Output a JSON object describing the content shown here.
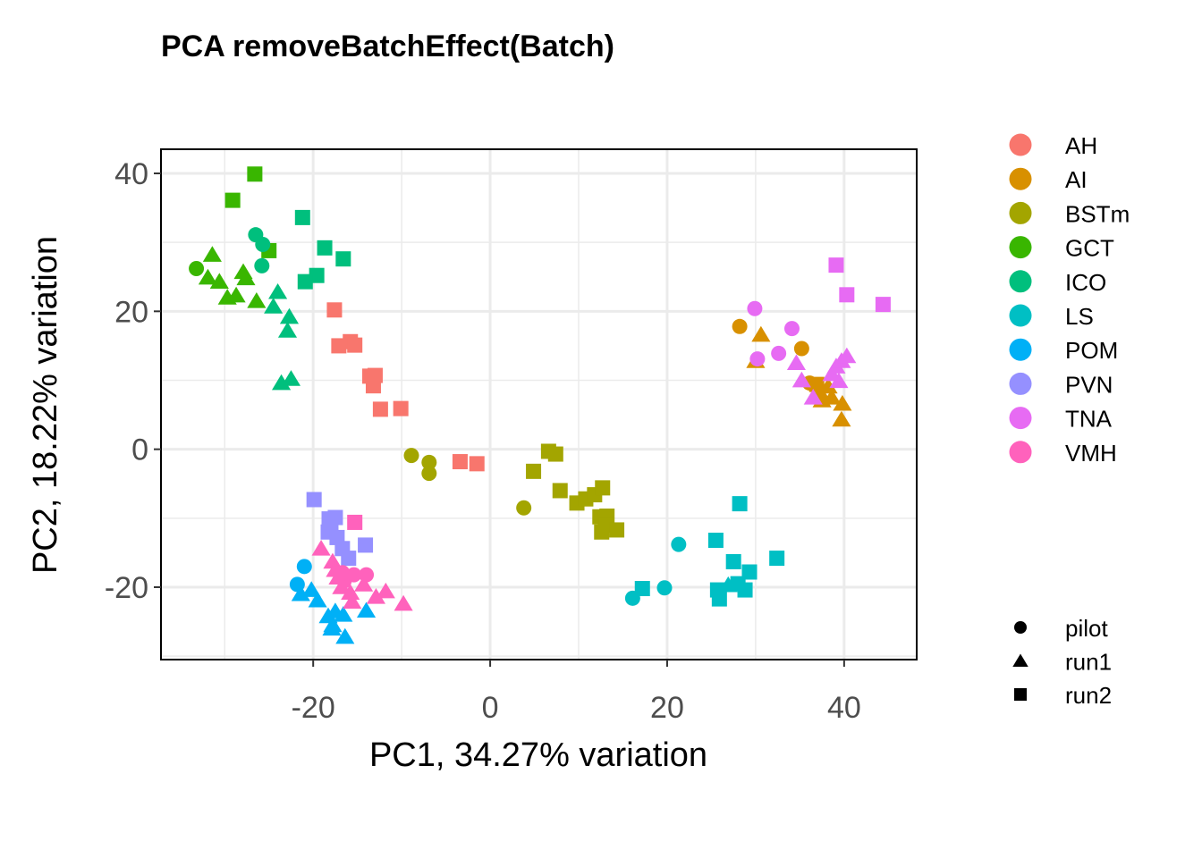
{
  "chart_data": {
    "type": "scatter",
    "title": "PCA removeBatchEffect(Batch)",
    "xlabel": "PC1, 34.27% variation",
    "ylabel": "PC2, 18.22% variation",
    "xlim": [
      -37.2,
      48.2
    ],
    "ylim": [
      -30.5,
      43.5
    ],
    "x_ticks": [
      -20,
      0,
      20,
      40
    ],
    "y_ticks": [
      -20,
      0,
      20,
      40
    ],
    "grid": true,
    "legend_position": "right",
    "groups": [
      {
        "name": "AH",
        "color": "#F8766D"
      },
      {
        "name": "AI",
        "color": "#D89000"
      },
      {
        "name": "BSTm",
        "color": "#A3A500"
      },
      {
        "name": "GCT",
        "color": "#39B600"
      },
      {
        "name": "ICO",
        "color": "#00BF7D"
      },
      {
        "name": "LS",
        "color": "#00BFC4"
      },
      {
        "name": "POM",
        "color": "#00B0F6"
      },
      {
        "name": "PVN",
        "color": "#9590FF"
      },
      {
        "name": "TNA",
        "color": "#E76BF3"
      },
      {
        "name": "VMH",
        "color": "#FF62BC"
      }
    ],
    "shapes": [
      {
        "name": "pilot",
        "shape": "circle"
      },
      {
        "name": "run1",
        "shape": "triangle"
      },
      {
        "name": "run2",
        "shape": "square"
      }
    ],
    "points": [
      {
        "x": -17.6,
        "y": 20.2,
        "g": "AH",
        "b": "run2"
      },
      {
        "x": -17.1,
        "y": 15.0,
        "g": "AH",
        "b": "run2"
      },
      {
        "x": -15.8,
        "y": 15.6,
        "g": "AH",
        "b": "run2"
      },
      {
        "x": -15.3,
        "y": 15.1,
        "g": "AH",
        "b": "run2"
      },
      {
        "x": -13.6,
        "y": 10.6,
        "g": "AH",
        "b": "run2"
      },
      {
        "x": -13.0,
        "y": 10.7,
        "g": "AH",
        "b": "run2"
      },
      {
        "x": -13.2,
        "y": 9.2,
        "g": "AH",
        "b": "run2"
      },
      {
        "x": -12.4,
        "y": 5.8,
        "g": "AH",
        "b": "run2"
      },
      {
        "x": -10.1,
        "y": 5.9,
        "g": "AH",
        "b": "run2"
      },
      {
        "x": -3.4,
        "y": -1.8,
        "g": "AH",
        "b": "run2"
      },
      {
        "x": -1.5,
        "y": -2.1,
        "g": "AH",
        "b": "run2"
      },
      {
        "x": 28.2,
        "y": 17.8,
        "g": "AI",
        "b": "pilot"
      },
      {
        "x": 35.2,
        "y": 14.6,
        "g": "AI",
        "b": "pilot"
      },
      {
        "x": 36.1,
        "y": 9.6,
        "g": "AI",
        "b": "pilot"
      },
      {
        "x": 30.6,
        "y": 16.6,
        "g": "AI",
        "b": "run1"
      },
      {
        "x": 30.0,
        "y": 12.8,
        "g": "AI",
        "b": "run1"
      },
      {
        "x": 37.3,
        "y": 8.2,
        "g": "AI",
        "b": "run1"
      },
      {
        "x": 38.2,
        "y": 9.1,
        "g": "AI",
        "b": "run1"
      },
      {
        "x": 37.5,
        "y": 7.1,
        "g": "AI",
        "b": "run1"
      },
      {
        "x": 38.6,
        "y": 7.5,
        "g": "AI",
        "b": "run1"
      },
      {
        "x": 39.8,
        "y": 6.6,
        "g": "AI",
        "b": "run1"
      },
      {
        "x": 39.7,
        "y": 4.3,
        "g": "AI",
        "b": "run1"
      },
      {
        "x": 36.9,
        "y": 9.4,
        "g": "AI",
        "b": "run2"
      },
      {
        "x": -8.9,
        "y": -0.9,
        "g": "BSTm",
        "b": "pilot"
      },
      {
        "x": -6.9,
        "y": -1.9,
        "g": "BSTm",
        "b": "pilot"
      },
      {
        "x": -6.9,
        "y": -3.5,
        "g": "BSTm",
        "b": "pilot"
      },
      {
        "x": 3.8,
        "y": -8.5,
        "g": "BSTm",
        "b": "pilot"
      },
      {
        "x": 6.6,
        "y": -0.3,
        "g": "BSTm",
        "b": "run2"
      },
      {
        "x": 7.4,
        "y": -0.7,
        "g": "BSTm",
        "b": "run2"
      },
      {
        "x": 4.9,
        "y": -3.2,
        "g": "BSTm",
        "b": "run2"
      },
      {
        "x": 7.9,
        "y": -6.0,
        "g": "BSTm",
        "b": "run2"
      },
      {
        "x": 9.8,
        "y": -7.8,
        "g": "BSTm",
        "b": "run2"
      },
      {
        "x": 10.8,
        "y": -7.2,
        "g": "BSTm",
        "b": "run2"
      },
      {
        "x": 11.8,
        "y": -6.6,
        "g": "BSTm",
        "b": "run2"
      },
      {
        "x": 12.7,
        "y": -5.6,
        "g": "BSTm",
        "b": "run2"
      },
      {
        "x": 12.4,
        "y": -9.8,
        "g": "BSTm",
        "b": "run2"
      },
      {
        "x": 13.0,
        "y": -10.0,
        "g": "BSTm",
        "b": "run2"
      },
      {
        "x": 13.2,
        "y": -9.7,
        "g": "BSTm",
        "b": "run2"
      },
      {
        "x": 13.1,
        "y": -11.0,
        "g": "BSTm",
        "b": "run2"
      },
      {
        "x": 12.6,
        "y": -12.0,
        "g": "BSTm",
        "b": "run2"
      },
      {
        "x": 14.3,
        "y": -11.7,
        "g": "BSTm",
        "b": "run2"
      },
      {
        "x": -33.2,
        "y": 26.2,
        "g": "GCT",
        "b": "pilot"
      },
      {
        "x": -31.4,
        "y": 28.2,
        "g": "GCT",
        "b": "run1"
      },
      {
        "x": -31.9,
        "y": 24.9,
        "g": "GCT",
        "b": "run1"
      },
      {
        "x": -30.6,
        "y": 24.3,
        "g": "GCT",
        "b": "run1"
      },
      {
        "x": -29.7,
        "y": 22.0,
        "g": "GCT",
        "b": "run1"
      },
      {
        "x": -28.7,
        "y": 22.3,
        "g": "GCT",
        "b": "run1"
      },
      {
        "x": -27.9,
        "y": 25.7,
        "g": "GCT",
        "b": "run1"
      },
      {
        "x": -27.6,
        "y": 24.8,
        "g": "GCT",
        "b": "run1"
      },
      {
        "x": -26.4,
        "y": 21.5,
        "g": "GCT",
        "b": "run1"
      },
      {
        "x": -29.1,
        "y": 36.1,
        "g": "GCT",
        "b": "run2"
      },
      {
        "x": -26.6,
        "y": 39.9,
        "g": "GCT",
        "b": "run2"
      },
      {
        "x": -25.0,
        "y": 28.8,
        "g": "GCT",
        "b": "run2"
      },
      {
        "x": -26.5,
        "y": 31.1,
        "g": "ICO",
        "b": "pilot"
      },
      {
        "x": -25.7,
        "y": 29.7,
        "g": "ICO",
        "b": "pilot"
      },
      {
        "x": -25.8,
        "y": 26.6,
        "g": "ICO",
        "b": "pilot"
      },
      {
        "x": -24.0,
        "y": 22.8,
        "g": "ICO",
        "b": "run1"
      },
      {
        "x": -24.5,
        "y": 20.7,
        "g": "ICO",
        "b": "run1"
      },
      {
        "x": -22.7,
        "y": 19.2,
        "g": "ICO",
        "b": "run1"
      },
      {
        "x": -22.9,
        "y": 17.2,
        "g": "ICO",
        "b": "run1"
      },
      {
        "x": -23.6,
        "y": 9.6,
        "g": "ICO",
        "b": "run1"
      },
      {
        "x": -22.5,
        "y": 10.2,
        "g": "ICO",
        "b": "run1"
      },
      {
        "x": -21.2,
        "y": 33.6,
        "g": "ICO",
        "b": "run2"
      },
      {
        "x": -18.7,
        "y": 29.2,
        "g": "ICO",
        "b": "run2"
      },
      {
        "x": -16.6,
        "y": 27.6,
        "g": "ICO",
        "b": "run2"
      },
      {
        "x": -19.6,
        "y": 25.2,
        "g": "ICO",
        "b": "run2"
      },
      {
        "x": -20.9,
        "y": 24.3,
        "g": "ICO",
        "b": "run2"
      },
      {
        "x": 16.1,
        "y": -21.6,
        "g": "LS",
        "b": "pilot"
      },
      {
        "x": 19.7,
        "y": -20.1,
        "g": "LS",
        "b": "pilot"
      },
      {
        "x": 21.3,
        "y": -13.8,
        "g": "LS",
        "b": "pilot"
      },
      {
        "x": 26.9,
        "y": -19.7,
        "g": "LS",
        "b": "run1"
      },
      {
        "x": 17.2,
        "y": -20.2,
        "g": "LS",
        "b": "run2"
      },
      {
        "x": 25.5,
        "y": -13.2,
        "g": "LS",
        "b": "run2"
      },
      {
        "x": 28.2,
        "y": -7.9,
        "g": "LS",
        "b": "run2"
      },
      {
        "x": 27.5,
        "y": -16.3,
        "g": "LS",
        "b": "run2"
      },
      {
        "x": 29.3,
        "y": -17.8,
        "g": "LS",
        "b": "run2"
      },
      {
        "x": 32.4,
        "y": -15.8,
        "g": "LS",
        "b": "run2"
      },
      {
        "x": 25.7,
        "y": -20.4,
        "g": "LS",
        "b": "run2"
      },
      {
        "x": 25.9,
        "y": -21.7,
        "g": "LS",
        "b": "run2"
      },
      {
        "x": 28.0,
        "y": -19.5,
        "g": "LS",
        "b": "run2"
      },
      {
        "x": 28.8,
        "y": -20.4,
        "g": "LS",
        "b": "run2"
      },
      {
        "x": -21.0,
        "y": -17.0,
        "g": "POM",
        "b": "pilot"
      },
      {
        "x": -21.8,
        "y": -19.6,
        "g": "POM",
        "b": "pilot"
      },
      {
        "x": -21.4,
        "y": -21.0,
        "g": "POM",
        "b": "run1"
      },
      {
        "x": -20.2,
        "y": -20.4,
        "g": "POM",
        "b": "run1"
      },
      {
        "x": -19.5,
        "y": -21.9,
        "g": "POM",
        "b": "run1"
      },
      {
        "x": -18.3,
        "y": -24.2,
        "g": "POM",
        "b": "run1"
      },
      {
        "x": -17.8,
        "y": -25.5,
        "g": "POM",
        "b": "run1"
      },
      {
        "x": -17.5,
        "y": -23.5,
        "g": "POM",
        "b": "run1"
      },
      {
        "x": -16.6,
        "y": -24.0,
        "g": "POM",
        "b": "run1"
      },
      {
        "x": -16.4,
        "y": -27.2,
        "g": "POM",
        "b": "run1"
      },
      {
        "x": -17.9,
        "y": -26.0,
        "g": "POM",
        "b": "run1"
      },
      {
        "x": -14.0,
        "y": -23.4,
        "g": "POM",
        "b": "run1"
      },
      {
        "x": -19.9,
        "y": -7.3,
        "g": "PVN",
        "b": "run2"
      },
      {
        "x": -18.2,
        "y": -10.1,
        "g": "PVN",
        "b": "run2"
      },
      {
        "x": -17.5,
        "y": -9.9,
        "g": "PVN",
        "b": "run2"
      },
      {
        "x": -18.0,
        "y": -11.4,
        "g": "PVN",
        "b": "run2"
      },
      {
        "x": -18.3,
        "y": -12.0,
        "g": "PVN",
        "b": "run2"
      },
      {
        "x": -17.3,
        "y": -12.8,
        "g": "PVN",
        "b": "run2"
      },
      {
        "x": -16.7,
        "y": -14.4,
        "g": "PVN",
        "b": "run2"
      },
      {
        "x": -16.0,
        "y": -15.8,
        "g": "PVN",
        "b": "run2"
      },
      {
        "x": -14.1,
        "y": -13.9,
        "g": "PVN",
        "b": "run2"
      },
      {
        "x": 29.9,
        "y": 20.4,
        "g": "TNA",
        "b": "pilot"
      },
      {
        "x": 30.2,
        "y": 13.1,
        "g": "TNA",
        "b": "pilot"
      },
      {
        "x": 32.6,
        "y": 13.9,
        "g": "TNA",
        "b": "pilot"
      },
      {
        "x": 34.1,
        "y": 17.5,
        "g": "TNA",
        "b": "pilot"
      },
      {
        "x": 34.6,
        "y": 12.5,
        "g": "TNA",
        "b": "run1"
      },
      {
        "x": 35.2,
        "y": 10.0,
        "g": "TNA",
        "b": "run1"
      },
      {
        "x": 36.5,
        "y": 7.5,
        "g": "TNA",
        "b": "run1"
      },
      {
        "x": 38.6,
        "y": 10.9,
        "g": "TNA",
        "b": "run1"
      },
      {
        "x": 39.1,
        "y": 12.0,
        "g": "TNA",
        "b": "run1"
      },
      {
        "x": 39.4,
        "y": 9.9,
        "g": "TNA",
        "b": "run1"
      },
      {
        "x": 39.7,
        "y": 12.8,
        "g": "TNA",
        "b": "run1"
      },
      {
        "x": 40.3,
        "y": 13.5,
        "g": "TNA",
        "b": "run1"
      },
      {
        "x": 39.1,
        "y": 26.7,
        "g": "TNA",
        "b": "run2"
      },
      {
        "x": 40.3,
        "y": 22.4,
        "g": "TNA",
        "b": "run2"
      },
      {
        "x": 44.4,
        "y": 21.0,
        "g": "TNA",
        "b": "run2"
      },
      {
        "x": -16.7,
        "y": -17.9,
        "g": "VMH",
        "b": "pilot"
      },
      {
        "x": -16.5,
        "y": -19.1,
        "g": "VMH",
        "b": "pilot"
      },
      {
        "x": -15.4,
        "y": -18.2,
        "g": "VMH",
        "b": "pilot"
      },
      {
        "x": -14.0,
        "y": -18.2,
        "g": "VMH",
        "b": "pilot"
      },
      {
        "x": -19.1,
        "y": -14.4,
        "g": "VMH",
        "b": "run1"
      },
      {
        "x": -17.8,
        "y": -16.3,
        "g": "VMH",
        "b": "run1"
      },
      {
        "x": -17.5,
        "y": -17.5,
        "g": "VMH",
        "b": "run1"
      },
      {
        "x": -17.2,
        "y": -18.6,
        "g": "VMH",
        "b": "run1"
      },
      {
        "x": -16.8,
        "y": -20.0,
        "g": "VMH",
        "b": "run1"
      },
      {
        "x": -15.8,
        "y": -20.8,
        "g": "VMH",
        "b": "run1"
      },
      {
        "x": -15.6,
        "y": -22.1,
        "g": "VMH",
        "b": "run1"
      },
      {
        "x": -14.3,
        "y": -19.6,
        "g": "VMH",
        "b": "run1"
      },
      {
        "x": -12.9,
        "y": -21.4,
        "g": "VMH",
        "b": "run1"
      },
      {
        "x": -11.8,
        "y": -20.6,
        "g": "VMH",
        "b": "run1"
      },
      {
        "x": -9.8,
        "y": -22.4,
        "g": "VMH",
        "b": "run1"
      },
      {
        "x": -15.3,
        "y": -10.6,
        "g": "VMH",
        "b": "run2"
      }
    ]
  }
}
